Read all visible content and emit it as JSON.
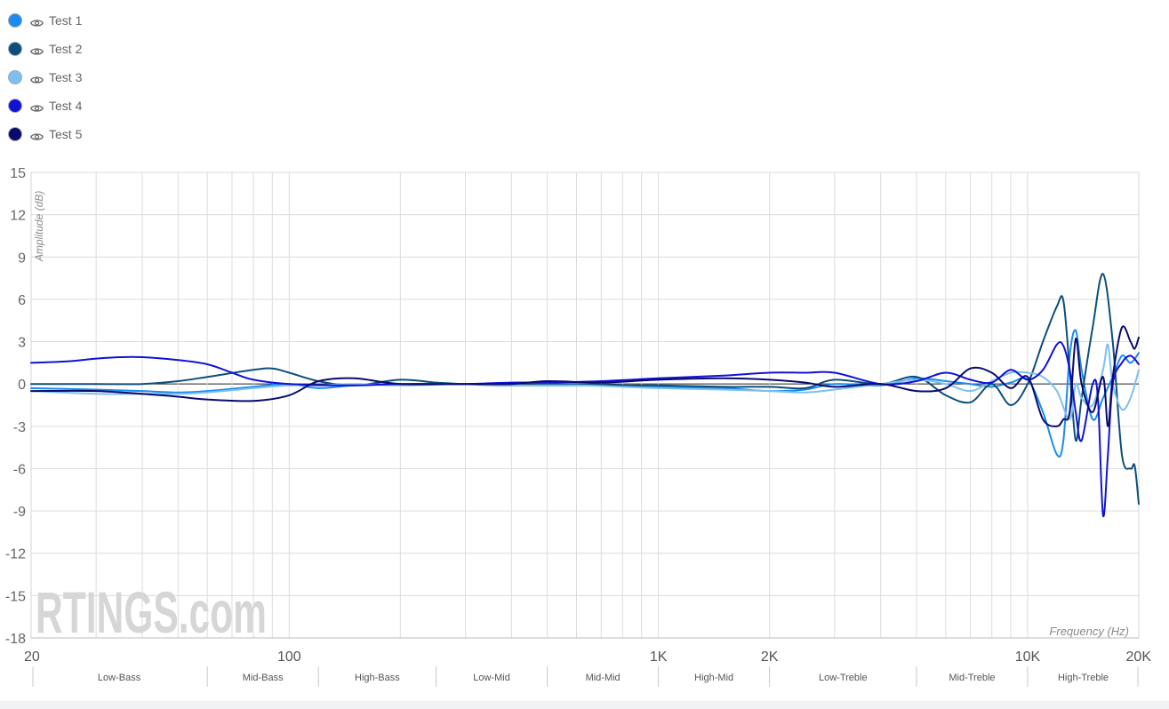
{
  "chart_data": {
    "type": "line",
    "title": "",
    "xlabel": "Frequency (Hz)",
    "ylabel": "Amplitude (dB)",
    "xscale": "log",
    "xlim": [
      20,
      20000
    ],
    "ylim": [
      -18,
      15
    ],
    "yticks": [
      15,
      12,
      9,
      6,
      3,
      0,
      -3,
      -6,
      -9,
      -12,
      -15,
      -18
    ],
    "xtick_labels": [
      {
        "value": 20,
        "label": "20"
      },
      {
        "value": 100,
        "label": "100"
      },
      {
        "value": 1000,
        "label": "1K"
      },
      {
        "value": 2000,
        "label": "2K"
      },
      {
        "value": 10000,
        "label": "10K"
      },
      {
        "value": 20000,
        "label": "20K"
      }
    ],
    "grid": true,
    "legend_position": "top-left",
    "watermark": "RTINGS.com",
    "bands": [
      {
        "label": "Low-Bass",
        "from": 20,
        "to": 60
      },
      {
        "label": "Mid-Bass",
        "from": 60,
        "to": 120
      },
      {
        "label": "High-Bass",
        "from": 120,
        "to": 250
      },
      {
        "label": "Low-Mid",
        "from": 250,
        "to": 500
      },
      {
        "label": "Mid-Mid",
        "from": 500,
        "to": 1000
      },
      {
        "label": "High-Mid",
        "from": 1000,
        "to": 2000
      },
      {
        "label": "Low-Treble",
        "from": 2000,
        "to": 5000
      },
      {
        "label": "Mid-Treble",
        "from": 5000,
        "to": 10000
      },
      {
        "label": "High-Treble",
        "from": 10000,
        "to": 20000
      }
    ],
    "series": [
      {
        "name": "Test 1",
        "color": "#1a8cf0",
        "points": [
          [
            20,
            -0.3
          ],
          [
            30,
            -0.4
          ],
          [
            40,
            -0.5
          ],
          [
            50,
            -0.6
          ],
          [
            60,
            -0.5
          ],
          [
            80,
            -0.2
          ],
          [
            100,
            0
          ],
          [
            120,
            -0.3
          ],
          [
            150,
            -0.1
          ],
          [
            200,
            0
          ],
          [
            300,
            0
          ],
          [
            400,
            -0.1
          ],
          [
            600,
            -0.1
          ],
          [
            800,
            -0.1
          ],
          [
            1000,
            -0.2
          ],
          [
            1500,
            -0.3
          ],
          [
            2000,
            -0.5
          ],
          [
            2500,
            -0.4
          ],
          [
            3000,
            0
          ],
          [
            4000,
            -0.1
          ],
          [
            5000,
            0.4
          ],
          [
            6000,
            0.2
          ],
          [
            7000,
            0
          ],
          [
            8000,
            -0.2
          ],
          [
            9000,
            0.1
          ],
          [
            10000,
            0.3
          ],
          [
            11000,
            -2
          ],
          [
            12000,
            -5
          ],
          [
            12500,
            -4
          ],
          [
            13000,
            2
          ],
          [
            13500,
            3.8
          ],
          [
            14000,
            1
          ],
          [
            15000,
            -2.5
          ],
          [
            16000,
            -1
          ],
          [
            17000,
            0.5
          ],
          [
            18000,
            2
          ],
          [
            19000,
            1.5
          ],
          [
            20000,
            2.2
          ]
        ]
      },
      {
        "name": "Test 2",
        "color": "#0d4e7c",
        "points": [
          [
            20,
            0
          ],
          [
            30,
            0
          ],
          [
            40,
            0
          ],
          [
            50,
            0.2
          ],
          [
            60,
            0.5
          ],
          [
            80,
            1
          ],
          [
            90,
            1.1
          ],
          [
            100,
            0.8
          ],
          [
            120,
            0.2
          ],
          [
            150,
            -0.1
          ],
          [
            200,
            0.3
          ],
          [
            250,
            0.1
          ],
          [
            300,
            0
          ],
          [
            400,
            -0.1
          ],
          [
            600,
            0
          ],
          [
            800,
            -0.1
          ],
          [
            1000,
            -0.1
          ],
          [
            1500,
            -0.2
          ],
          [
            2000,
            -0.2
          ],
          [
            2500,
            -0.3
          ],
          [
            3000,
            0.3
          ],
          [
            4000,
            0
          ],
          [
            5000,
            0.5
          ],
          [
            6000,
            -0.8
          ],
          [
            7000,
            -1.3
          ],
          [
            8000,
            0
          ],
          [
            9000,
            -1.5
          ],
          [
            10000,
            0
          ],
          [
            11000,
            3
          ],
          [
            12000,
            5.5
          ],
          [
            12500,
            5.9
          ],
          [
            13000,
            1
          ],
          [
            13500,
            -4
          ],
          [
            14000,
            -1
          ],
          [
            15000,
            4
          ],
          [
            16000,
            7.8
          ],
          [
            17000,
            3
          ],
          [
            18000,
            -5
          ],
          [
            19000,
            -6
          ],
          [
            19500,
            -5.8
          ],
          [
            20000,
            -8.5
          ]
        ]
      },
      {
        "name": "Test 3",
        "color": "#7cc0f2",
        "points": [
          [
            20,
            -0.5
          ],
          [
            30,
            -0.7
          ],
          [
            40,
            -0.7
          ],
          [
            50,
            -0.7
          ],
          [
            60,
            -0.6
          ],
          [
            80,
            -0.3
          ],
          [
            100,
            -0.1
          ],
          [
            120,
            -0.1
          ],
          [
            150,
            0
          ],
          [
            200,
            -0.1
          ],
          [
            300,
            0
          ],
          [
            400,
            -0.1
          ],
          [
            600,
            -0.1
          ],
          [
            800,
            -0.2
          ],
          [
            1000,
            -0.3
          ],
          [
            1500,
            -0.4
          ],
          [
            2000,
            -0.5
          ],
          [
            2500,
            -0.6
          ],
          [
            3000,
            -0.4
          ],
          [
            4000,
            0
          ],
          [
            5000,
            0.3
          ],
          [
            6000,
            0
          ],
          [
            7000,
            -0.5
          ],
          [
            8000,
            0.2
          ],
          [
            9000,
            0.8
          ],
          [
            10000,
            0.8
          ],
          [
            11000,
            0.5
          ],
          [
            12000,
            -0.5
          ],
          [
            13000,
            -2.5
          ],
          [
            13500,
            0
          ],
          [
            14000,
            -1
          ],
          [
            15000,
            -1.5
          ],
          [
            16000,
            1
          ],
          [
            16500,
            2.8
          ],
          [
            17000,
            0
          ],
          [
            18000,
            -1.8
          ],
          [
            19000,
            -1
          ],
          [
            20000,
            1
          ]
        ]
      },
      {
        "name": "Test 4",
        "color": "#1212d6",
        "points": [
          [
            20,
            1.5
          ],
          [
            25,
            1.6
          ],
          [
            30,
            1.8
          ],
          [
            35,
            1.9
          ],
          [
            40,
            1.9
          ],
          [
            50,
            1.7
          ],
          [
            60,
            1.4
          ],
          [
            70,
            0.8
          ],
          [
            80,
            0.3
          ],
          [
            100,
            0
          ],
          [
            150,
            -0.1
          ],
          [
            200,
            0
          ],
          [
            300,
            0
          ],
          [
            400,
            0.1
          ],
          [
            500,
            0.1
          ],
          [
            700,
            0.2
          ],
          [
            1000,
            0.4
          ],
          [
            1500,
            0.6
          ],
          [
            2000,
            0.8
          ],
          [
            2500,
            0.8
          ],
          [
            3000,
            0.8
          ],
          [
            4000,
            0
          ],
          [
            5000,
            0.2
          ],
          [
            6000,
            0.8
          ],
          [
            7000,
            0.3
          ],
          [
            8000,
            0.1
          ],
          [
            9000,
            1
          ],
          [
            10000,
            0.3
          ],
          [
            11000,
            1
          ],
          [
            12000,
            2.8
          ],
          [
            12500,
            2.7
          ],
          [
            13000,
            1
          ],
          [
            13500,
            -2
          ],
          [
            14000,
            -4
          ],
          [
            15000,
            0
          ],
          [
            15500,
            -1
          ],
          [
            16000,
            -9.3
          ],
          [
            16500,
            -5
          ],
          [
            17000,
            0
          ],
          [
            18000,
            1.5
          ],
          [
            19000,
            2
          ],
          [
            20000,
            1.4
          ]
        ]
      },
      {
        "name": "Test 5",
        "color": "#0a0a6e",
        "points": [
          [
            20,
            -0.5
          ],
          [
            30,
            -0.5
          ],
          [
            40,
            -0.7
          ],
          [
            50,
            -0.9
          ],
          [
            60,
            -1.1
          ],
          [
            80,
            -1.2
          ],
          [
            100,
            -0.8
          ],
          [
            120,
            0.2
          ],
          [
            150,
            0.4
          ],
          [
            200,
            0
          ],
          [
            300,
            0
          ],
          [
            400,
            0
          ],
          [
            500,
            0.2
          ],
          [
            700,
            0.1
          ],
          [
            1000,
            0.3
          ],
          [
            1500,
            0.4
          ],
          [
            2000,
            0.3
          ],
          [
            2500,
            0.1
          ],
          [
            3000,
            -0.2
          ],
          [
            4000,
            0
          ],
          [
            5000,
            -0.5
          ],
          [
            6000,
            -0.3
          ],
          [
            7000,
            1.1
          ],
          [
            8000,
            0.8
          ],
          [
            9000,
            -0.3
          ],
          [
            10000,
            0.5
          ],
          [
            11000,
            -2.5
          ],
          [
            12000,
            -3
          ],
          [
            12500,
            -2.5
          ],
          [
            13000,
            -2
          ],
          [
            13500,
            3.2
          ],
          [
            14000,
            0
          ],
          [
            15000,
            -2
          ],
          [
            16000,
            0.5
          ],
          [
            16500,
            -3
          ],
          [
            17000,
            0.5
          ],
          [
            18000,
            4
          ],
          [
            19000,
            3
          ],
          [
            19500,
            2.5
          ],
          [
            20000,
            3.3
          ]
        ]
      }
    ]
  }
}
